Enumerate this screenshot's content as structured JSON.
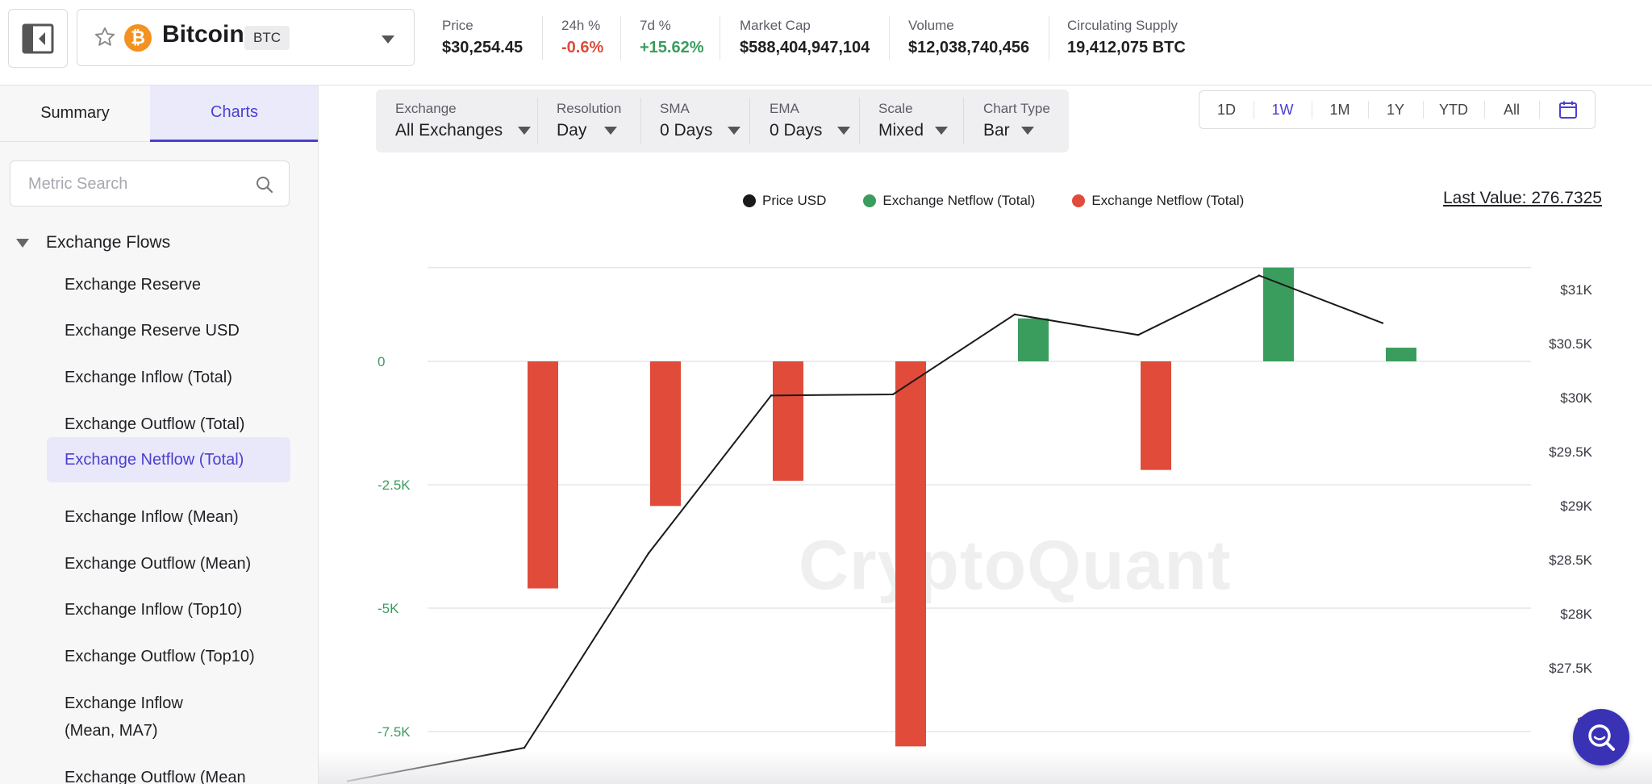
{
  "asset": {
    "name": "Bitcoin",
    "ticker": "BTC",
    "logo_glyph": "₿",
    "logo_color": "#f39220"
  },
  "stats": [
    {
      "label": "Price",
      "value": "$30,254.45",
      "tone": "neutral"
    },
    {
      "label": "24h %",
      "value": "-0.6%",
      "tone": "negative"
    },
    {
      "label": "7d %",
      "value": "+15.62%",
      "tone": "positive"
    },
    {
      "label": "Market Cap",
      "value": "$588,404,947,104",
      "tone": "neutral"
    },
    {
      "label": "Volume",
      "value": "$12,038,740,456",
      "tone": "neutral"
    },
    {
      "label": "Circulating Supply",
      "value": "19,412,075 BTC",
      "tone": "neutral"
    }
  ],
  "sidebar": {
    "tabs": [
      {
        "label": "Summary",
        "active": false
      },
      {
        "label": "Charts",
        "active": true
      }
    ],
    "search": {
      "placeholder": "Metric Search",
      "value": ""
    },
    "group": {
      "label": "Exchange Flows",
      "expanded": true
    },
    "items": [
      {
        "label": "Exchange Reserve",
        "active": false
      },
      {
        "label": "Exchange Reserve USD",
        "active": false
      },
      {
        "label": "Exchange Inflow (Total)",
        "active": false
      },
      {
        "label": "Exchange Outflow (Total)",
        "active": false
      },
      {
        "label": "Exchange Netflow (Total)",
        "active": true
      },
      {
        "label": "Exchange Inflow (Mean)",
        "active": false
      },
      {
        "label": "Exchange Outflow (Mean)",
        "active": false
      },
      {
        "label": "Exchange Inflow (Top10)",
        "active": false
      },
      {
        "label": "Exchange Outflow (Top10)",
        "active": false
      },
      {
        "label": "Exchange Inflow (Mean, MA7)",
        "active": false
      },
      {
        "label": "Exchange Outflow (Mean",
        "active": false
      }
    ]
  },
  "toolbar": {
    "controls": [
      {
        "label": "Exchange",
        "value": "All Exchanges"
      },
      {
        "label": "Resolution",
        "value": "Day"
      },
      {
        "label": "SMA",
        "value": "0 Days"
      },
      {
        "label": "EMA",
        "value": "0 Days"
      },
      {
        "label": "Scale",
        "value": "Mixed"
      },
      {
        "label": "Chart Type",
        "value": "Bar"
      }
    ],
    "ranges": [
      {
        "label": "1D",
        "active": false
      },
      {
        "label": "1W",
        "active": true
      },
      {
        "label": "1M",
        "active": false
      },
      {
        "label": "1Y",
        "active": false
      },
      {
        "label": "YTD",
        "active": false
      },
      {
        "label": "All",
        "active": false
      }
    ]
  },
  "last_value": "Last Value: 276.7325",
  "watermark": "CryptoQuant",
  "colors": {
    "accent": "#4b3fd0",
    "positive": "#3a9d5d",
    "negative": "#e04b3a",
    "line": "#1a1a1a"
  },
  "chart_data": {
    "type": "bar",
    "legend": [
      {
        "name": "Price USD",
        "color": "#1a1a1a"
      },
      {
        "name": "Exchange Netflow (Total)",
        "color": "#3a9d5d"
      },
      {
        "name": "Exchange Netflow (Total)",
        "color": "#e04b3a"
      }
    ],
    "left_ticks": [
      "0",
      "-2.5K",
      "-5K",
      "-7.5K"
    ],
    "left_tick_values": [
      0,
      -2500,
      -5000,
      -7500
    ],
    "right_ticks": [
      "$31K",
      "$30.5K",
      "$30K",
      "$29.5K",
      "$29K",
      "$28.5K",
      "$28K",
      "$27.5K",
      "$2"
    ],
    "right_tick_values": [
      31000,
      30500,
      30000,
      29500,
      29000,
      28500,
      28000,
      27500,
      27000
    ],
    "netflow_series": {
      "name": "Exchange Netflow (Total)",
      "values": [
        -4600,
        -2930,
        -2420,
        -7800,
        870,
        -2200,
        1900,
        277
      ]
    },
    "price_series": {
      "name": "Price USD",
      "values": [
        26450,
        26760,
        28560,
        30020,
        30030,
        30770,
        30580,
        31130,
        30690
      ]
    }
  }
}
